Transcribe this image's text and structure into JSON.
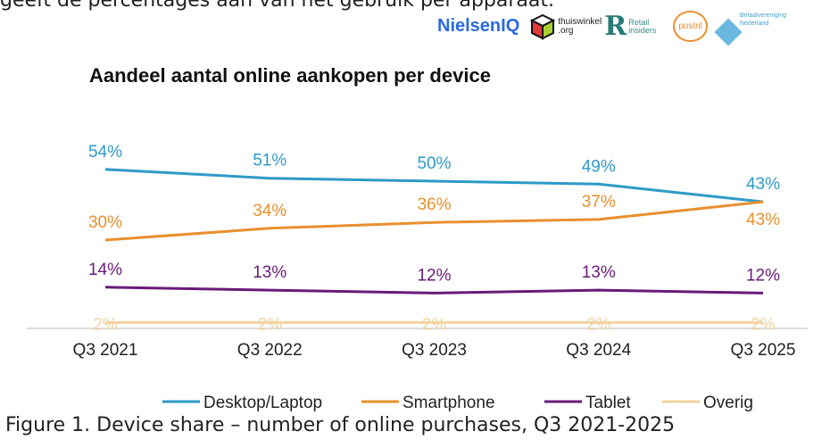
{
  "header_text": "geeft de percentages aan van het gebruik per apparaat.",
  "logos": {
    "nielsen": "NielsenIQ",
    "thuiswinkel": "thuiswinkel .org",
    "retail": "Retail insiders",
    "postnl": "postnl",
    "betaal": "Betaalvereniging Nederland"
  },
  "caption": "Figure 1. Device share – number of online purchases, Q3 2021-2025",
  "chart_data": {
    "type": "line",
    "title": "Aandeel aantal online aankopen per device",
    "categories": [
      "Q3 2021",
      "Q3 2022",
      "Q3 2023",
      "Q3 2024",
      "Q3 2025"
    ],
    "ylim": [
      0,
      60
    ],
    "grid": false,
    "legend": "bottom",
    "series": [
      {
        "name": "Desktop/Laptop",
        "color": "#2e9ac8",
        "values": [
          54,
          51,
          50,
          49,
          43
        ],
        "labels": [
          "54%",
          "51%",
          "50%",
          "49%",
          "43%"
        ]
      },
      {
        "name": "Smartphone",
        "color": "#e8902e",
        "values": [
          30,
          34,
          36,
          37,
          43
        ],
        "labels": [
          "30%",
          "34%",
          "36%",
          "37%",
          "43%"
        ]
      },
      {
        "name": "Tablet",
        "color": "#6a1a7a",
        "values": [
          14,
          13,
          12,
          13,
          12
        ],
        "labels": [
          "14%",
          "13%",
          "12%",
          "13%",
          "12%"
        ]
      },
      {
        "name": "Overig",
        "color": "#f2d3a0",
        "values": [
          2,
          2,
          2,
          2,
          2
        ],
        "labels": [
          "2%",
          "2%",
          "2%",
          "2%",
          "2%"
        ]
      }
    ]
  }
}
